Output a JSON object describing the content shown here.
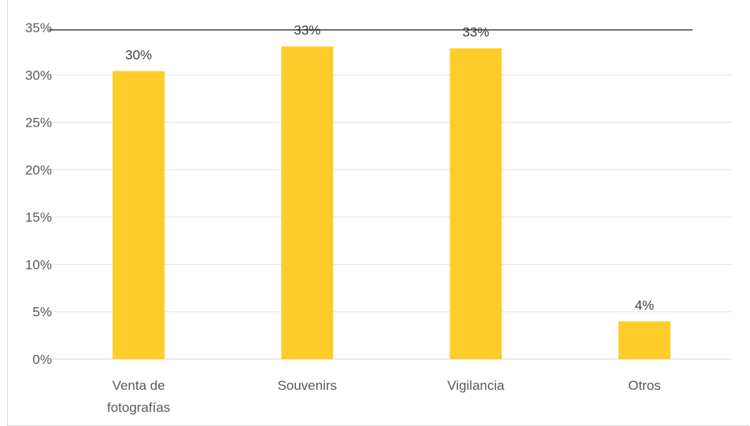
{
  "chart_data": {
    "type": "bar",
    "categories": [
      [
        "Venta de",
        "fotografías"
      ],
      [
        "Souvenirs"
      ],
      [
        "Vigilancia"
      ],
      [
        "Otros"
      ]
    ],
    "values": [
      30.4,
      33.0,
      32.8,
      4.0
    ],
    "data_labels": [
      "30%",
      "33%",
      "33%",
      "4%"
    ],
    "y_ticks": [
      "0%",
      "5%",
      "10%",
      "15%",
      "20%",
      "25%",
      "30%",
      "35%"
    ],
    "ylim": [
      0,
      35
    ],
    "bar_color": "#FFCC29",
    "grid": true,
    "title": "",
    "xlabel": "",
    "ylabel": ""
  }
}
